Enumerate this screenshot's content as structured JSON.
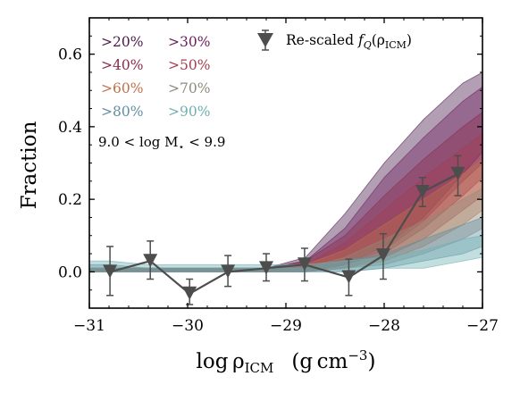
{
  "chart_data": {
    "type": "area",
    "ylabel": "Fraction",
    "xlabel_parts": {
      "main": "log ρ",
      "sub": "ICM",
      "units": "(g cm",
      "units_sup": "−3",
      "units_close": ")"
    },
    "xlim": [
      -31,
      -27
    ],
    "ylim": [
      -0.1,
      0.7
    ],
    "x_ticks": [
      -31,
      -30,
      -29,
      -28,
      -27
    ],
    "x_tick_labels": [
      "−31",
      "−30",
      "−29",
      "−28",
      "−27"
    ],
    "y_ticks": [
      0.0,
      0.2,
      0.4,
      0.6
    ],
    "y_tick_labels": [
      "0.0",
      "0.2",
      "0.4",
      "0.6"
    ],
    "grid": false,
    "legend_placement": "top-left",
    "annotation": {
      "prefix": "9.0 < log M",
      "sub": "⋆",
      "suffix": " < 9.9"
    },
    "band_x": [
      -31.2,
      -30.8,
      -30.4,
      -30.0,
      -29.6,
      -29.2,
      -28.8,
      -28.4,
      -28.0,
      -27.6,
      -27.2,
      -27.0
    ],
    "series": [
      {
        "name": ">20%",
        "color": "#4a1a4c",
        "lower": [
          0.0,
          0.0,
          0.0,
          0.0,
          0.0,
          0.0,
          0.0,
          0.02,
          0.07,
          0.15,
          0.27,
          0.33
        ],
        "upper": [
          0.01,
          0.01,
          0.01,
          0.01,
          0.01,
          0.01,
          0.04,
          0.16,
          0.3,
          0.42,
          0.52,
          0.55
        ]
      },
      {
        "name": ">30%",
        "color": "#6b2060",
        "lower": [
          0.0,
          0.0,
          0.0,
          0.0,
          0.0,
          0.0,
          0.0,
          0.02,
          0.06,
          0.14,
          0.25,
          0.3
        ],
        "upper": [
          0.01,
          0.01,
          0.01,
          0.01,
          0.01,
          0.01,
          0.03,
          0.12,
          0.26,
          0.37,
          0.47,
          0.51
        ]
      },
      {
        "name": ">40%",
        "color": "#8a2c4c",
        "lower": [
          0.0,
          0.0,
          0.0,
          0.0,
          0.0,
          0.0,
          0.0,
          0.02,
          0.05,
          0.12,
          0.21,
          0.26
        ],
        "upper": [
          0.01,
          0.01,
          0.01,
          0.01,
          0.01,
          0.01,
          0.03,
          0.1,
          0.21,
          0.31,
          0.4,
          0.44
        ]
      },
      {
        "name": ">50%",
        "color": "#a53e50",
        "lower": [
          0.0,
          0.0,
          0.0,
          0.0,
          0.0,
          0.0,
          0.0,
          0.01,
          0.04,
          0.09,
          0.17,
          0.21
        ],
        "upper": [
          0.01,
          0.01,
          0.01,
          0.01,
          0.01,
          0.01,
          0.02,
          0.08,
          0.17,
          0.26,
          0.34,
          0.38
        ]
      },
      {
        "name": ">60%",
        "color": "#c0714a",
        "lower": [
          0.0,
          0.0,
          0.0,
          0.0,
          0.0,
          0.0,
          0.0,
          0.01,
          0.03,
          0.07,
          0.13,
          0.17
        ],
        "upper": [
          0.01,
          0.01,
          0.01,
          0.01,
          0.01,
          0.01,
          0.02,
          0.06,
          0.13,
          0.2,
          0.27,
          0.31
        ]
      },
      {
        "name": ">70%",
        "color": "#8f8a7a",
        "lower": [
          0.0,
          0.0,
          0.0,
          0.0,
          0.0,
          0.0,
          0.0,
          0.01,
          0.02,
          0.05,
          0.09,
          0.12
        ],
        "upper": [
          0.01,
          0.01,
          0.01,
          0.01,
          0.01,
          0.01,
          0.01,
          0.04,
          0.09,
          0.14,
          0.2,
          0.23
        ]
      },
      {
        "name": ">80%",
        "color": "#5f8fa3",
        "lower": [
          0.0,
          0.0,
          0.0,
          0.0,
          0.0,
          0.0,
          0.0,
          0.0,
          0.01,
          0.03,
          0.05,
          0.07
        ],
        "upper": [
          0.02,
          0.02,
          0.01,
          0.01,
          0.01,
          0.01,
          0.01,
          0.03,
          0.05,
          0.09,
          0.13,
          0.15
        ]
      },
      {
        "name": ">90%",
        "color": "#6fb0b3",
        "lower": [
          0.0,
          0.0,
          0.0,
          0.0,
          0.0,
          0.0,
          0.0,
          0.0,
          0.01,
          0.01,
          0.03,
          0.04
        ],
        "upper": [
          0.03,
          0.03,
          0.02,
          0.02,
          0.02,
          0.02,
          0.02,
          0.03,
          0.04,
          0.06,
          0.09,
          0.1
        ]
      }
    ],
    "rescaled": {
      "name_prefix": "Re-scaled ",
      "name_f": "f",
      "name_fsub": "Q",
      "name_arg": "(ρ",
      "name_argsub": "ICM",
      "name_close": ")",
      "color": "#4d4d4d",
      "x": [
        -30.79,
        -30.38,
        -29.98,
        -29.59,
        -29.2,
        -28.81,
        -28.36,
        -28.01,
        -27.61,
        -27.25
      ],
      "y": [
        0.0,
        0.03,
        -0.06,
        0.0,
        0.01,
        0.02,
        -0.015,
        0.045,
        0.22,
        0.27
      ],
      "err_low": [
        0.065,
        0.05,
        0.03,
        0.04,
        0.035,
        0.045,
        0.05,
        0.065,
        0.04,
        0.06
      ],
      "err_high": [
        0.07,
        0.055,
        0.04,
        0.045,
        0.04,
        0.045,
        0.05,
        0.06,
        0.04,
        0.05
      ]
    }
  }
}
